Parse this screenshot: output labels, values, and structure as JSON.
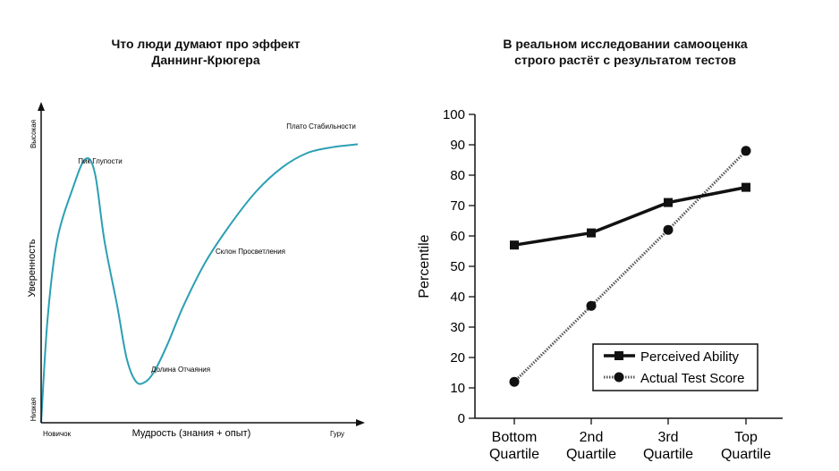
{
  "colors": {
    "curve": "#2b9fb3",
    "axis": "#111111",
    "perceived": "#111111",
    "actual": "#555555"
  },
  "left": {
    "title_line1": "Что люди думают про эффект",
    "title_line2": "Даннинг-Крюгера",
    "xlabel": "Мудрость (знания + опыт)",
    "ylabel": "Уверенность",
    "y_high": "Высокая",
    "y_low": "Низкая",
    "x_start": "Новичок",
    "x_end": "Гуру",
    "annotations": {
      "peak": "Пик Глупости",
      "valley": "Долина Отчаяния",
      "slope": "Склон Просветления",
      "plateau": "Плато Стабильности"
    }
  },
  "right": {
    "title_line1": "В реальном исследовании самооценка",
    "title_line2": "строго растёт с результатом тестов"
  },
  "chart_data": [
    {
      "type": "line",
      "title": "Что люди думают про эффект Даннинг-Крюгера",
      "xlabel": "Мудрость (знания + опыт)",
      "ylabel": "Уверенность",
      "x_ticks": [
        "Новичок",
        "Гуру"
      ],
      "y_ticks": [
        "Низкая",
        "Высокая"
      ],
      "series": [
        {
          "x": [
            0,
            2,
            5,
            10,
            14,
            17,
            20,
            24,
            27,
            30,
            33,
            36,
            40,
            45,
            52,
            60,
            68,
            76,
            84,
            92,
            100
          ],
          "y": [
            0,
            35,
            62,
            80,
            90,
            85,
            62,
            40,
            22,
            14,
            14,
            18,
            27,
            40,
            55,
            68,
            79,
            87,
            92,
            94,
            95
          ]
        }
      ],
      "annotations": [
        "Пик Глупости",
        "Долина Отчаяния",
        "Склон Просветления",
        "Плато Стабильности"
      ]
    },
    {
      "type": "line",
      "title": "",
      "categories": [
        "Bottom Quartile",
        "2nd Quartile",
        "3rd Quartile",
        "Top Quartile"
      ],
      "ylabel": "Percentile",
      "ylim": [
        0,
        100
      ],
      "y_ticks": [
        0,
        10,
        20,
        30,
        40,
        50,
        60,
        70,
        80,
        90,
        100
      ],
      "legend": "bottom-right",
      "series": [
        {
          "name": "Perceived Ability",
          "values": [
            57,
            61,
            71,
            76
          ],
          "marker": "square",
          "style": "solid"
        },
        {
          "name": "Actual Test Score",
          "values": [
            12,
            37,
            62,
            88
          ],
          "marker": "circle",
          "style": "dotted"
        }
      ]
    }
  ]
}
